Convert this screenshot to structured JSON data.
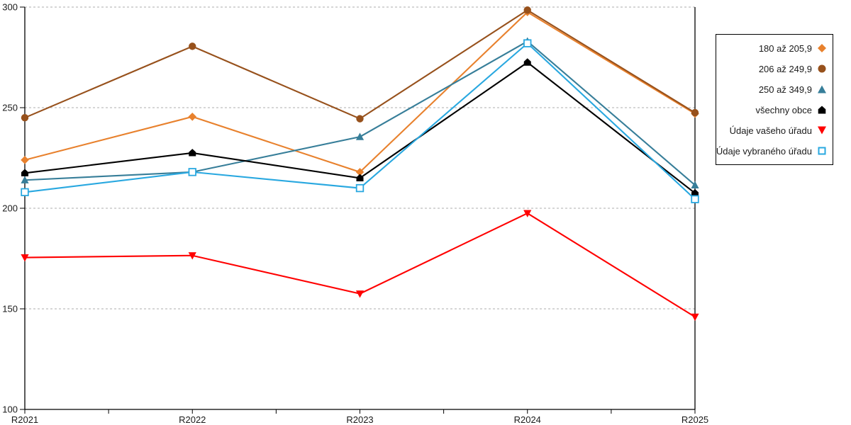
{
  "chart_data": {
    "type": "line",
    "title": "",
    "xlabel": "",
    "ylabel": "",
    "categories": [
      "R2021",
      "R2022",
      "R2023",
      "R2024",
      "R2025"
    ],
    "series": [
      {
        "name": "180 až 205,9",
        "marker": "diamond",
        "color": "#E8812D",
        "values": [
          224,
          245.5,
          218,
          297.5,
          247
        ]
      },
      {
        "name": "206 až 249,9",
        "marker": "circle",
        "color": "#97511C",
        "values": [
          245,
          280.5,
          244.5,
          298.5,
          247.5
        ]
      },
      {
        "name": "250 až 349,9",
        "marker": "triangle-up",
        "color": "#377E99",
        "values": [
          214,
          218,
          235.5,
          283,
          211.5
        ]
      },
      {
        "name": "všechny obce",
        "marker": "pentagon-up",
        "color": "#000000",
        "values": [
          217.5,
          227.5,
          215,
          272.5,
          207.5
        ]
      },
      {
        "name": "Údaje vašeho úřadu",
        "marker": "triangle-down",
        "color": "#FF0000",
        "values": [
          175.5,
          176.5,
          157.5,
          197.5,
          146
        ]
      },
      {
        "name": "Údaje vybraného úřadu",
        "marker": "square-open",
        "color": "#29A8E0",
        "values": [
          208,
          218,
          210,
          282,
          204.5
        ]
      }
    ],
    "ylim": [
      100,
      300
    ],
    "yticks": [
      100,
      150,
      200,
      250,
      300
    ],
    "grid": "horizontal-dashed",
    "grid_color": "#ADADAD",
    "axis_color": "#000000",
    "legend_position": "right"
  }
}
